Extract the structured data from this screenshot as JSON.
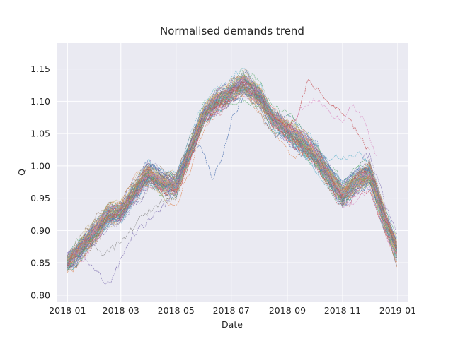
{
  "chart_data": {
    "type": "line",
    "title": "Normalised demands trend",
    "xlabel": "Date",
    "ylabel": "Q",
    "xlim": [
      "2017-12-20",
      "2019-01-12"
    ],
    "ylim": [
      0.79,
      1.19
    ],
    "grid": true,
    "legend": "none",
    "background_color": "#eaeaf2",
    "grid_color": "#ffffff",
    "palette": [
      "#4c72b0",
      "#dd8452",
      "#55a868",
      "#c44e52",
      "#8172b3",
      "#937860",
      "#da8bc3",
      "#8c8c8c",
      "#ccb974",
      "#64b5cd"
    ],
    "x_ticks": [
      "2018-01",
      "2018-03",
      "2018-05",
      "2018-07",
      "2018-09",
      "2018-11",
      "2019-01"
    ],
    "y_ticks": [
      0.8,
      0.85,
      0.9,
      0.95,
      1.0,
      1.05,
      1.1,
      1.15
    ],
    "x_range": [
      "2018-01-01",
      "2018-12-31"
    ],
    "trend": {
      "x": [
        "2018-01-01",
        "2018-01-15",
        "2018-02-01",
        "2018-02-15",
        "2018-03-01",
        "2018-03-15",
        "2018-04-01",
        "2018-04-15",
        "2018-05-01",
        "2018-05-15",
        "2018-06-01",
        "2018-06-15",
        "2018-07-01",
        "2018-07-15",
        "2018-08-01",
        "2018-08-15",
        "2018-09-01",
        "2018-09-15",
        "2018-10-01",
        "2018-10-15",
        "2018-11-01",
        "2018-11-15",
        "2018-12-01",
        "2018-12-15",
        "2018-12-31"
      ],
      "y": [
        0.85,
        0.87,
        0.9,
        0.925,
        0.93,
        0.96,
        0.99,
        0.975,
        0.97,
        1.02,
        1.08,
        1.1,
        1.115,
        1.13,
        1.11,
        1.075,
        1.055,
        1.04,
        1.02,
        0.99,
        0.955,
        0.975,
        0.99,
        0.93,
        0.87
      ]
    },
    "series_count": 100,
    "band_halfwidth": 0.018,
    "outlier_series": [
      {
        "x": [
          "2018-01-01",
          "2018-01-15",
          "2018-02-01",
          "2018-02-15",
          "2018-03-01",
          "2018-03-15",
          "2018-04-01",
          "2018-04-15",
          "2018-05-01"
        ],
        "y": [
          0.87,
          0.86,
          0.84,
          0.815,
          0.855,
          0.895,
          0.915,
          0.935,
          0.96
        ]
      },
      {
        "x": [
          "2018-01-01",
          "2018-01-20",
          "2018-02-10",
          "2018-03-01",
          "2018-03-20",
          "2018-04-10",
          "2018-05-01"
        ],
        "y": [
          0.86,
          0.88,
          0.865,
          0.88,
          0.915,
          0.94,
          0.955
        ]
      },
      {
        "x": [
          "2018-05-01",
          "2018-05-15",
          "2018-05-28",
          "2018-06-10",
          "2018-06-20",
          "2018-07-01",
          "2018-07-15"
        ],
        "y": [
          0.97,
          1.02,
          1.035,
          0.98,
          1.01,
          1.07,
          1.11
        ]
      },
      {
        "x": [
          "2018-08-15",
          "2018-09-01",
          "2018-09-10",
          "2018-09-25",
          "2018-10-05",
          "2018-10-15",
          "2018-11-01",
          "2018-11-15",
          "2018-12-01"
        ],
        "y": [
          1.08,
          1.06,
          1.07,
          1.135,
          1.115,
          1.1,
          1.08,
          1.06,
          1.02
        ]
      },
      {
        "x": [
          "2018-08-15",
          "2018-09-01",
          "2018-09-15",
          "2018-10-01",
          "2018-10-15",
          "2018-11-01",
          "2018-11-10",
          "2018-11-25",
          "2018-12-10"
        ],
        "y": [
          1.075,
          1.05,
          1.085,
          1.105,
          1.085,
          1.07,
          1.095,
          1.07,
          1.01
        ]
      },
      {
        "x": [
          "2018-09-01",
          "2018-09-20",
          "2018-10-10",
          "2018-10-25",
          "2018-11-05",
          "2018-11-20",
          "2018-12-05"
        ],
        "y": [
          1.04,
          1.02,
          1.01,
          1.015,
          1.01,
          1.02,
          0.99
        ]
      }
    ]
  }
}
